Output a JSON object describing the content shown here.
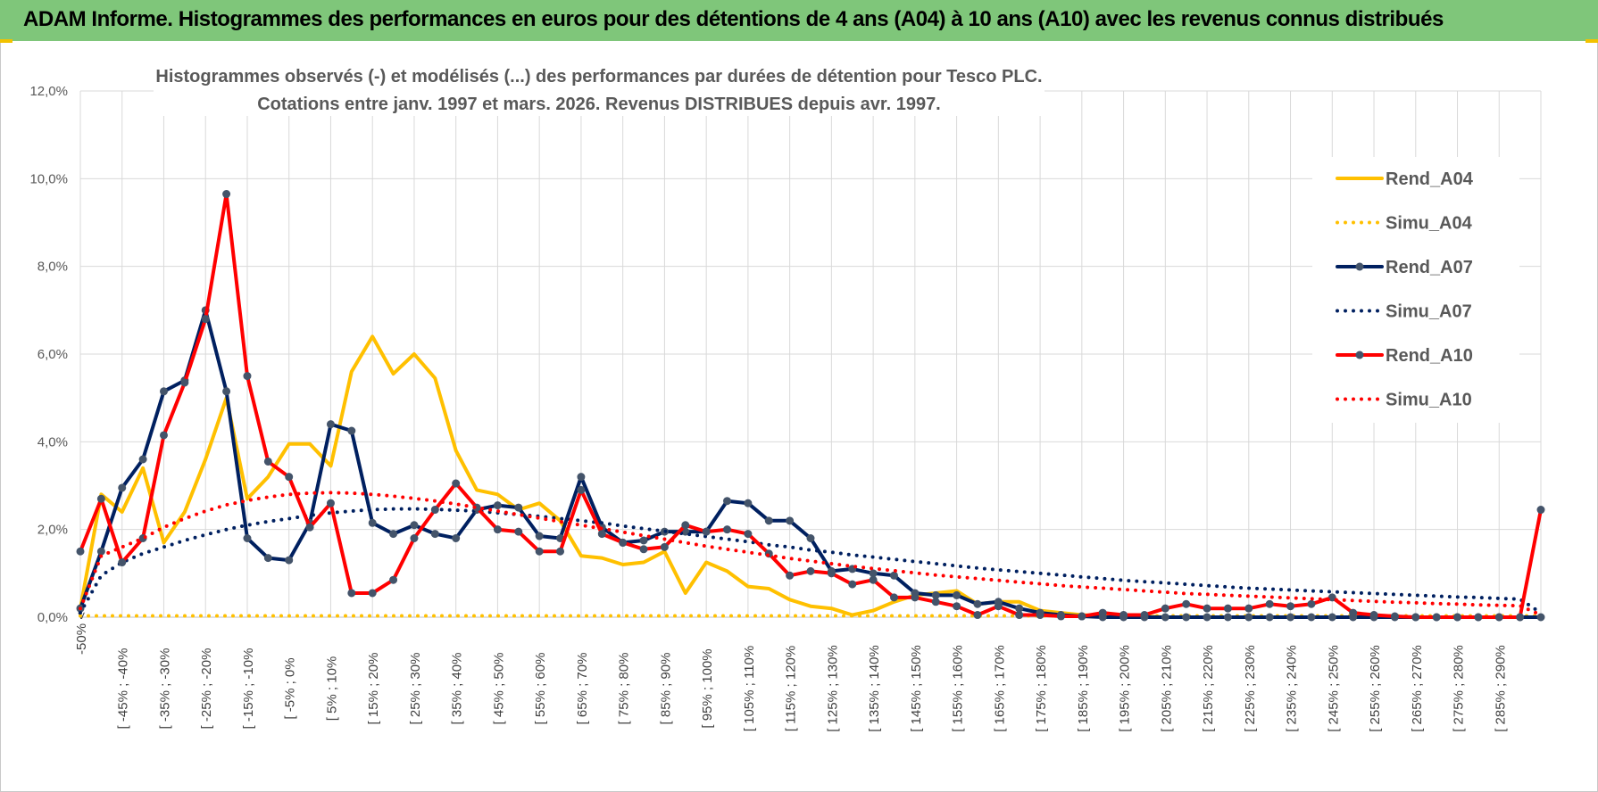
{
  "header": {
    "title": "ADAM Informe. Histogrammes des performances en euros pour des détentions de 4 ans (A04) à 10 ans (A10) avec les revenus connus distribués"
  },
  "chart_data": {
    "type": "line",
    "title": "Histogrammes observés (-) et modélisés (...) des performances par durées de détention pour Tesco PLC.",
    "subtitle": "Cotations entre janv. 1997 et mars. 2026.  Revenus DISTRIBUES depuis avr. 1997.",
    "xlabel": "",
    "ylabel": "",
    "ylim": [
      0,
      12
    ],
    "yticks": [
      "0,0%",
      "2,0%",
      "4,0%",
      "6,0%",
      "8,0%",
      "10,0%",
      "12,0%"
    ],
    "grid": true,
    "legend_position": "right",
    "categories": [
      "-50% <",
      "[ -50% ; -45%",
      "[ -45% ; -40%",
      "[ -40% ; -35%",
      "[ -35% ; -30%",
      "[ -30% ; -25%",
      "[ -25% ; -20%",
      "[ -20% ; -15%",
      "[ -15% ; -10%",
      "[ -10% ; -5%",
      "[ -5% ; 0%",
      "[ 0% ; 5%",
      "[ 5% ; 10%",
      "[ 10% ; 15%",
      "[ 15% ; 20%",
      "[ 20% ; 25%",
      "[ 25% ; 30%",
      "[ 30% ; 35%",
      "[ 35% ; 40%",
      "[ 40% ; 45%",
      "[ 45% ; 50%",
      "[ 50% ; 55%",
      "[ 55% ; 60%",
      "[ 60% ; 65%",
      "[ 65% ; 70%",
      "[ 70% ; 75%",
      "[ 75% ; 80%",
      "[ 80% ; 85%",
      "[ 85% ; 90%",
      "[ 90% ; 95%",
      "[ 95% ; 100%",
      "[ 100% ; 105%",
      "[ 105% ; 110%",
      "[ 110% ; 115%",
      "[ 115% ; 120%",
      "[ 120% ; 125%",
      "[ 125% ; 130%",
      "[ 130% ; 135%",
      "[ 135% ; 140%",
      "[ 140% ; 145%",
      "[ 145% ; 150%",
      "[ 150% ; 155%",
      "[ 155% ; 160%",
      "[ 160% ; 165%",
      "[ 165% ; 170%",
      "[ 170% ; 175%",
      "[ 175% ; 180%",
      "[ 180% ; 185%",
      "[ 185% ; 190%",
      "[ 190% ; 195%",
      "[ 195% ; 200%",
      "[ 200% ; 205%",
      "[ 205% ; 210%",
      "[ 210% ; 215%",
      "[ 215% ; 220%",
      "[ 220% ; 225%",
      "[ 225% ; 230%",
      "[ 230% ; 235%",
      "[ 235% ; 240%",
      "[ 240% ; 245%",
      "[ 245% ; 250%",
      "[ 250% ; 255%",
      "[ 255% ; 260%",
      "[ 260% ; 265%",
      "[ 265% ; 270%",
      "[ 270% ; 275%",
      "[ 275% ; 280%",
      "[ 280% ; 285%",
      "[ 285% ; 290%",
      "[ 290% ; 295%",
      "[ 295% ; 300%"
    ],
    "visible_tick_labels": [
      "-50% <",
      "[ -45% ; -40%",
      "[ -35% ; -30%",
      "[ -25% ; -20%",
      "[ -15% ; -10%",
      "[ -5% ; 0%",
      "[ 5% ; 10%",
      "[ 15% ; 20%",
      "[ 25% ; 30%",
      "[ 35% ; 40%",
      "[ 45% ; 50%",
      "[ 55% ; 60%",
      "[ 65% ; 70%",
      "[ 75% ; 80%",
      "[ 85% ; 90%",
      "[ 95% ; 100%",
      "[ 105% ; 110%",
      "[ 115% ; 120%",
      "[ 125% ; 130%",
      "[ 135% ; 140%",
      "[ 145% ; 150%",
      "[ 155% ; 160%",
      "[ 165% ; 170%",
      "[ 175% ; 180%",
      "[ 185% ; 190%",
      "[ 195% ; 200%",
      "[ 205% ; 210%",
      "[ 215% ; 220%",
      "[ 225% ; 230%",
      "[ 235% ; 240%",
      "[ 245% ; 250%",
      "[ 255% ; 260%",
      "[ 265% ; 270%",
      "[ 275% ; 280%",
      "[ 285% ; 290%"
    ],
    "series": [
      {
        "name": "Rend_A04",
        "style": "solid",
        "markers": false,
        "color": "#ffc000",
        "values": [
          0.2,
          2.8,
          2.4,
          3.4,
          1.7,
          2.4,
          3.6,
          5.0,
          2.7,
          3.2,
          3.95,
          3.95,
          3.45,
          5.6,
          6.4,
          5.55,
          6.0,
          5.45,
          3.8,
          2.9,
          2.8,
          2.45,
          2.6,
          2.2,
          1.4,
          1.35,
          1.2,
          1.25,
          1.5,
          0.55,
          1.25,
          1.05,
          0.7,
          0.65,
          0.4,
          0.25,
          0.2,
          0.05,
          0.15,
          0.35,
          0.5,
          0.55,
          0.6,
          0.3,
          0.35,
          0.35,
          0.15,
          0.1,
          0.05,
          0.03,
          0.05,
          0.02,
          0.0,
          0.0,
          0.0,
          0.0,
          0.0,
          0.0,
          0.0,
          0.0,
          0.0,
          0.0,
          0.0,
          0.0,
          0.0,
          0.0,
          0.0,
          0.0,
          0.0,
          0.0,
          0.0
        ]
      },
      {
        "name": "Simu_A04",
        "style": "dotted",
        "markers": false,
        "color": "#ffc000",
        "values": [
          0.03,
          0.03,
          0.03,
          0.03,
          0.03,
          0.03,
          0.03,
          0.03,
          0.03,
          0.03,
          0.03,
          0.03,
          0.03,
          0.03,
          0.03,
          0.03,
          0.03,
          0.03,
          0.03,
          0.03,
          0.03,
          0.03,
          0.03,
          0.03,
          0.03,
          0.03,
          0.03,
          0.03,
          0.03,
          0.03,
          0.03,
          0.03,
          0.03,
          0.03,
          0.03,
          0.03,
          0.03,
          0.03,
          0.03,
          0.03,
          0.03,
          0.03,
          0.03,
          0.03,
          0.03,
          0.03,
          0.03,
          0.03,
          0.03,
          0.03,
          0.03,
          0.03,
          0.03,
          0.03,
          0.03,
          0.03,
          0.03,
          0.03,
          0.03,
          0.03,
          0.03,
          0.03,
          0.03,
          0.03,
          0.03,
          0.03,
          0.03,
          0.03,
          0.03,
          0.03,
          0.03
        ]
      },
      {
        "name": "Rend_A07",
        "style": "solid",
        "markers": true,
        "color": "#002060",
        "values": [
          0.2,
          1.5,
          2.95,
          3.6,
          5.15,
          5.4,
          7.0,
          5.15,
          1.8,
          1.35,
          1.3,
          2.15,
          4.4,
          4.25,
          2.15,
          1.9,
          2.1,
          1.9,
          1.8,
          2.45,
          2.55,
          2.5,
          1.85,
          1.8,
          3.2,
          2.05,
          1.7,
          1.75,
          1.95,
          1.95,
          1.95,
          2.65,
          2.6,
          2.2,
          2.2,
          1.8,
          1.05,
          1.1,
          1.0,
          0.95,
          0.55,
          0.5,
          0.5,
          0.3,
          0.35,
          0.2,
          0.1,
          0.05,
          0.02,
          0.0,
          0.0,
          0.0,
          0.0,
          0.0,
          0.0,
          0.0,
          0.0,
          0.0,
          0.0,
          0.0,
          0.0,
          0.0,
          0.0,
          0.0,
          0.0,
          0.0,
          0.0,
          0.0,
          0.0,
          0.0,
          0.0
        ]
      },
      {
        "name": "Simu_A07",
        "style": "dotted",
        "markers": false,
        "color": "#002060",
        "values": [
          0.1,
          0.95,
          1.25,
          1.45,
          1.6,
          1.75,
          1.88,
          2.0,
          2.1,
          2.18,
          2.25,
          2.32,
          2.38,
          2.42,
          2.45,
          2.47,
          2.47,
          2.46,
          2.44,
          2.42,
          2.38,
          2.34,
          2.3,
          2.25,
          2.2,
          2.15,
          2.08,
          2.02,
          1.96,
          1.9,
          1.84,
          1.78,
          1.72,
          1.65,
          1.6,
          1.53,
          1.48,
          1.42,
          1.37,
          1.32,
          1.27,
          1.22,
          1.17,
          1.12,
          1.08,
          1.04,
          1.0,
          0.96,
          0.92,
          0.88,
          0.84,
          0.81,
          0.78,
          0.75,
          0.72,
          0.69,
          0.66,
          0.64,
          0.62,
          0.6,
          0.58,
          0.56,
          0.54,
          0.52,
          0.5,
          0.48,
          0.46,
          0.45,
          0.43,
          0.41,
          0.1
        ]
      },
      {
        "name": "Rend_A10",
        "style": "solid",
        "markers": true,
        "color": "#ff0000",
        "values": [
          1.5,
          2.7,
          1.25,
          1.8,
          4.15,
          5.35,
          6.8,
          9.65,
          5.5,
          3.55,
          3.2,
          2.05,
          2.6,
          0.55,
          0.55,
          0.85,
          1.8,
          2.45,
          3.05,
          2.5,
          2.0,
          1.95,
          1.5,
          1.5,
          2.9,
          1.9,
          1.7,
          1.55,
          1.6,
          2.1,
          1.95,
          2.0,
          1.9,
          1.45,
          0.95,
          1.05,
          1.0,
          0.75,
          0.85,
          0.45,
          0.45,
          0.35,
          0.25,
          0.05,
          0.25,
          0.05,
          0.05,
          0.02,
          0.02,
          0.1,
          0.05,
          0.05,
          0.2,
          0.3,
          0.2,
          0.2,
          0.2,
          0.3,
          0.25,
          0.3,
          0.45,
          0.1,
          0.05,
          0.02,
          0.0,
          0.0,
          0.0,
          0.0,
          0.0,
          0.0,
          2.45
        ]
      },
      {
        "name": "Simu_A10",
        "style": "dotted",
        "markers": false,
        "color": "#ff0000",
        "values": [
          0.2,
          1.4,
          1.6,
          1.8,
          2.05,
          2.25,
          2.42,
          2.56,
          2.66,
          2.74,
          2.8,
          2.83,
          2.84,
          2.83,
          2.8,
          2.76,
          2.71,
          2.65,
          2.58,
          2.5,
          2.42,
          2.34,
          2.26,
          2.18,
          2.1,
          2.02,
          1.94,
          1.86,
          1.78,
          1.7,
          1.62,
          1.55,
          1.48,
          1.41,
          1.34,
          1.28,
          1.22,
          1.16,
          1.11,
          1.06,
          1.01,
          0.96,
          0.92,
          0.88,
          0.84,
          0.8,
          0.76,
          0.72,
          0.69,
          0.66,
          0.63,
          0.6,
          0.57,
          0.54,
          0.52,
          0.5,
          0.48,
          0.46,
          0.44,
          0.42,
          0.4,
          0.38,
          0.36,
          0.34,
          0.33,
          0.31,
          0.3,
          0.28,
          0.27,
          0.26,
          0.05
        ]
      }
    ]
  }
}
